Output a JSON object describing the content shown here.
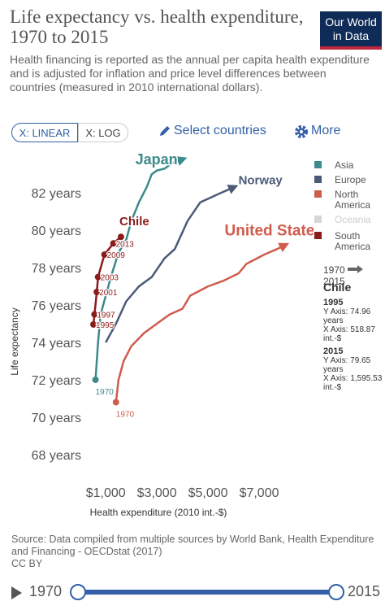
{
  "header": {
    "logo": [
      "Our World",
      "in Data"
    ]
  },
  "controls": {
    "linear": "X: LINEAR",
    "log": "X: LOG",
    "select": "Select countries",
    "more": "More"
  },
  "chart_data": {
    "type": "line",
    "title": "Life expectancy vs. health expenditure, 1970 to 2015",
    "subtitle": "Health financing is reported as the annual per capita health expenditure and is adjusted for inflation and price level differences between countries (measured in 2010 international dollars).",
    "x_label": "Health expenditure (2010 int.-$)",
    "y_label": "Life expectancy",
    "xlim": [
      200,
      9000
    ],
    "ylim": [
      66.6,
      84.1
    ],
    "xticks": [
      {
        "value": 1000,
        "label": "$1,000"
      },
      {
        "value": 3000,
        "label": "$3,000"
      },
      {
        "value": 5000,
        "label": "$5,000"
      },
      {
        "value": 7000,
        "label": "$7,000"
      }
    ],
    "yticks": [
      {
        "value": 68,
        "label": "68 years"
      },
      {
        "value": 70,
        "label": "70 years"
      },
      {
        "value": 72,
        "label": "72 years"
      },
      {
        "value": 74,
        "label": "74 years"
      },
      {
        "value": 76,
        "label": "76 years"
      },
      {
        "value": 78,
        "label": "78 years"
      },
      {
        "value": 80,
        "label": "80 years"
      },
      {
        "value": 82,
        "label": "82 years"
      }
    ],
    "grid": false,
    "series": [
      {
        "name": "Japan",
        "color": "#3c8a8c",
        "x": [
          600,
          700,
          800,
          1000,
          1200,
          1500,
          1800,
          2000,
          2300,
          2600,
          2800,
          3000,
          3300,
          3600,
          4000
        ],
        "values": [
          72.0,
          74.0,
          75.5,
          76.5,
          77.5,
          78.8,
          79.5,
          80.5,
          81.5,
          82.3,
          83.0,
          83.2,
          83.3,
          83.6,
          83.8
        ],
        "point_labels": [
          1970,
          null,
          null,
          null,
          null,
          null,
          null,
          null,
          null,
          null,
          null,
          null,
          null,
          null,
          null
        ]
      },
      {
        "name": "Norway",
        "color": "#4c5a78",
        "x": [
          1000,
          1400,
          1800,
          2300,
          2800,
          3300,
          3700,
          4200,
          4700,
          5500,
          6000
        ],
        "values": [
          74.0,
          75.0,
          76.2,
          77.0,
          77.5,
          78.5,
          79.0,
          80.5,
          81.5,
          82.0,
          82.3
        ]
      },
      {
        "name": "United States",
        "color": "#d05c4e",
        "x": [
          1400,
          1500,
          1700,
          2000,
          2500,
          3000,
          3500,
          4000,
          4300,
          5000,
          5600,
          6200,
          6500,
          7200,
          7700,
          8000
        ],
        "values": [
          70.8,
          72.0,
          73.0,
          73.8,
          74.5,
          75.0,
          75.5,
          75.8,
          76.5,
          77.0,
          77.3,
          77.7,
          78.2,
          78.7,
          79.0,
          79.2
        ],
        "point_labels": [
          1970,
          null,
          null,
          null,
          null,
          null,
          null,
          null,
          null,
          null,
          null,
          null,
          null,
          null,
          null,
          null
        ]
      },
      {
        "name": "Chile",
        "color": "#8b1c1c",
        "markers": true,
        "x": [
          518.87,
          560,
          650,
          700,
          950,
          1300,
          1595.53
        ],
        "values": [
          74.96,
          75.5,
          76.7,
          77.5,
          78.7,
          79.3,
          79.65
        ],
        "point_labels": [
          1995,
          1997,
          2001,
          2003,
          2009,
          2013,
          null
        ]
      }
    ],
    "legend": [
      {
        "name": "Asia",
        "color": "#3c8a8c"
      },
      {
        "name": "Europe",
        "color": "#4c5a78"
      },
      {
        "name": "North America",
        "color": "#d05c4e"
      },
      {
        "name": "Oceania",
        "color": "#d6d6d6"
      },
      {
        "name": "South America",
        "color": "#8b1c1c"
      }
    ],
    "period": [
      1970,
      2015
    ],
    "tooltip": {
      "country": "Chile",
      "entries": [
        {
          "year": 1995,
          "lines": [
            "Y Axis: 74.96 years",
            "X Axis: 518.87 int.-$"
          ]
        },
        {
          "year": 2015,
          "lines": [
            "Y Axis: 79.65 years",
            "X Axis: 1,595.53 int.-$"
          ]
        }
      ]
    }
  },
  "source": "Source: Data compiled from multiple sources by World Bank, Health Expenditure and Financing - OECDstat (2017)",
  "license": "CC BY",
  "timeline": {
    "start": 1970,
    "end": 2015
  }
}
